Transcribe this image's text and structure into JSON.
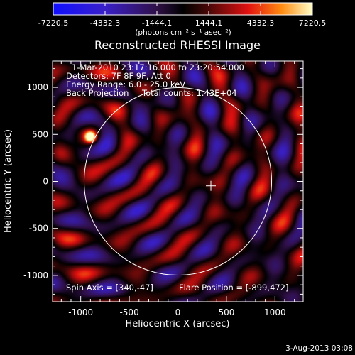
{
  "chart_data": {
    "type": "heatmap",
    "title": "Reconstructed RHESSI Image",
    "xlabel": "Heliocentric X (arcsec)",
    "ylabel": "Heliocentric Y (arcsec)",
    "xlim": [
      -1290,
      1290
    ],
    "ylim": [
      -1280,
      1280
    ],
    "x_ticks": [
      -1000,
      -500,
      0,
      500,
      1000
    ],
    "y_ticks": [
      -1000,
      -500,
      0,
      500,
      1000
    ],
    "x_tick_labels": [
      "-1000",
      "-500",
      "0",
      "500",
      "1000"
    ],
    "y_tick_labels": [
      "-1000",
      "-500",
      "0",
      "500",
      "1000"
    ],
    "colorbar": {
      "min": -7220.5,
      "max": 7220.5,
      "ticks": [
        -7220.5,
        -4332.3,
        -1444.1,
        1444.1,
        4332.3,
        7220.5
      ],
      "tick_labels": [
        "-7220.5",
        "-4332.3",
        "-1444.1",
        "1444.1",
        "4332.3",
        "7220.5"
      ],
      "unit_label": "(photons cm⁻² s⁻¹ asec⁻²)"
    },
    "annotations": {
      "time_range": "1-Mar-2010 23:17:16.000 to 23:20:54.000",
      "detectors": "Detectors: 7F 8F 9F, Att 0",
      "energy_range": "Energy Range: 6.0 - 25.0 keV",
      "method": "Back Projection",
      "total_counts": "Total counts: 1.43E+04",
      "spin_axis": "Spin Axis = [340,-47]",
      "flare_position": "Flare Position = [-899,472]"
    },
    "solar_disk": {
      "center": [
        0,
        0
      ],
      "radius_arcsec": 965
    },
    "spin_axis_marker": [
      340,
      -47
    ],
    "flare_source": {
      "x": -899,
      "y": 472,
      "peak": 7220.5
    },
    "timestamp": "3-Aug-2013 03:08"
  }
}
